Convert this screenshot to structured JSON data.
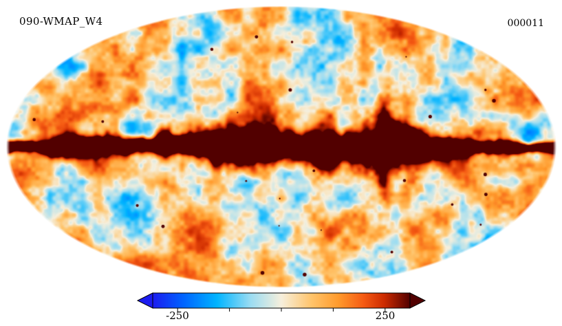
{
  "page": {
    "background": "#ffffff"
  },
  "header": {
    "title": "090-WMAP_W4",
    "frame_id": "000011"
  },
  "chart_data": {
    "type": "heatmap",
    "projection": "mollweide",
    "title": "090-WMAP_W4",
    "frame_label": "000011",
    "description": "Full-sky CMB temperature map, Mollweide projection, with saturated dark-red galactic plane along the equator",
    "grid": false,
    "legend_position": "bottom",
    "colorbar": {
      "min": -250,
      "max": 250,
      "bar_range": [
        -310,
        310
      ],
      "tick_values": [
        -250,
        -125,
        0,
        125,
        250
      ],
      "tick_labels": [
        "-250",
        "250"
      ],
      "colormap_stops": [
        {
          "pos": 0.0,
          "color": "#1c1cf0"
        },
        {
          "pos": 0.12,
          "color": "#0064ff"
        },
        {
          "pos": 0.25,
          "color": "#00b4ff"
        },
        {
          "pos": 0.38,
          "color": "#9adcf2"
        },
        {
          "pos": 0.5,
          "color": "#f6efdc"
        },
        {
          "pos": 0.62,
          "color": "#ffc369"
        },
        {
          "pos": 0.72,
          "color": "#ff9b2d"
        },
        {
          "pos": 0.82,
          "color": "#f55a13"
        },
        {
          "pos": 0.9,
          "color": "#cc2a00"
        },
        {
          "pos": 1.0,
          "color": "#520000"
        }
      ]
    }
  },
  "render": {
    "seed": 11
  }
}
